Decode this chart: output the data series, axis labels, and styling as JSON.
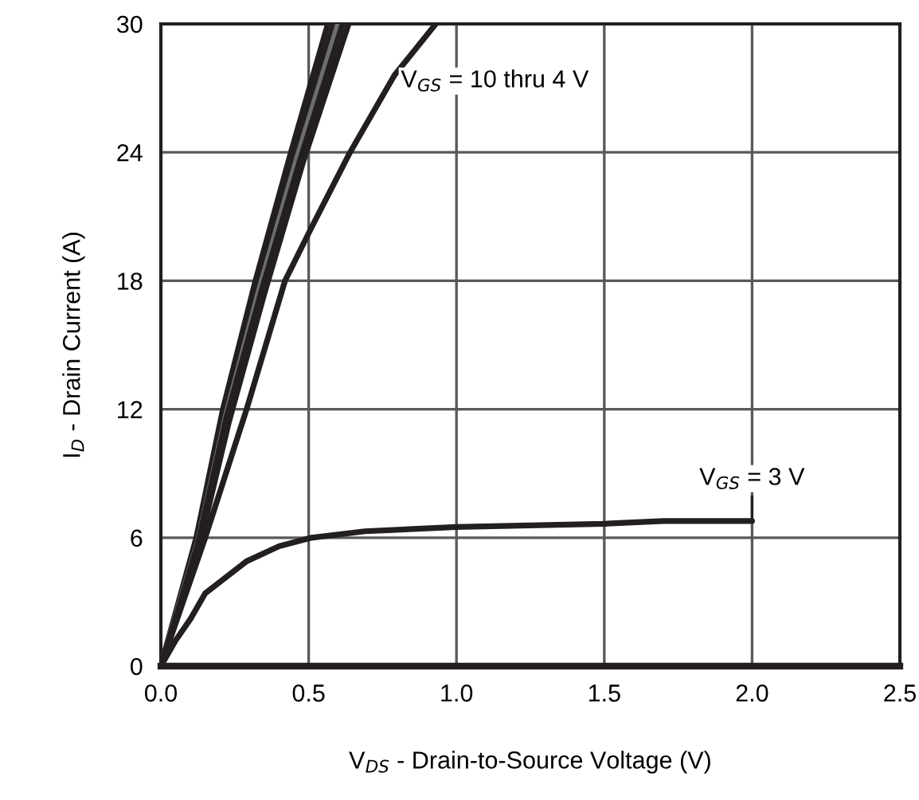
{
  "chart_data": {
    "type": "line",
    "xlabel": "V$_{DS}$ - Drain-to-Source Voltage (V)",
    "ylabel": "I$_{D}$ - Drain Current (A)",
    "xlim": [
      0,
      2.5
    ],
    "ylim": [
      0,
      30
    ],
    "xticks": [
      {
        "value": 0,
        "label": "0.0"
      },
      0.5,
      {
        "value": 1,
        "label": "1.0"
      },
      1.5,
      {
        "value": 2,
        "label": "2.0"
      },
      2.5
    ],
    "yticks": [
      0,
      6,
      12,
      18,
      24,
      30
    ],
    "grid": true,
    "marker": "none",
    "line_style": "solid",
    "series": [
      {
        "color": "#231f20",
        "x": [
          0,
          0.06,
          0.12,
          0.21,
          0.32,
          0.44,
          0.565
        ],
        "values": [
          0,
          3,
          6,
          12,
          18,
          24,
          30
        ]
      },
      {
        "color": "#231f20",
        "x": [
          0,
          0.06,
          0.12,
          0.21,
          0.325,
          0.45,
          0.585
        ],
        "values": [
          0,
          2.9,
          5.9,
          11.8,
          17.8,
          23.8,
          30
        ]
      },
      {
        "color": "#6d6e71",
        "x": [
          0,
          0.06,
          0.125,
          0.22,
          0.335,
          0.46,
          0.6
        ],
        "values": [
          0,
          2.8,
          5.8,
          11.7,
          17.7,
          23.7,
          30
        ]
      },
      {
        "color": "#231f20",
        "x": [
          0,
          0.06,
          0.125,
          0.22,
          0.34,
          0.47,
          0.615
        ],
        "values": [
          0,
          2.7,
          5.7,
          11.5,
          17.5,
          23.6,
          30
        ]
      },
      {
        "color": "#231f20",
        "x": [
          0,
          0.06,
          0.13,
          0.23,
          0.35,
          0.48,
          0.635
        ],
        "values": [
          0,
          2.6,
          5.6,
          11.4,
          17.4,
          23.5,
          30
        ]
      },
      {
        "color": "#231f20",
        "x": [
          0,
          0.075,
          0.15,
          0.29,
          0.42,
          0.51,
          0.64,
          0.79,
          0.93
        ],
        "values": [
          0,
          3,
          6,
          12,
          18,
          20.5,
          24,
          27.6,
          30
        ]
      },
      {
        "color": "#231f20",
        "x": [
          0,
          0.05,
          0.1,
          0.15,
          0.29,
          0.4,
          0.51,
          0.69,
          1.0,
          1.5,
          1.7,
          2.0
        ],
        "values": [
          0,
          1.2,
          2.2,
          3.4,
          4.9,
          5.6,
          6,
          6.3,
          6.5,
          6.65,
          6.78,
          6.78
        ]
      }
    ],
    "annotations": [
      "V$_{GS}$ = 10 thru 4 V",
      {
        "text": "V$_{GS}$ = 3 V",
        "x": 2.0,
        "y": 6.78
      }
    ]
  }
}
